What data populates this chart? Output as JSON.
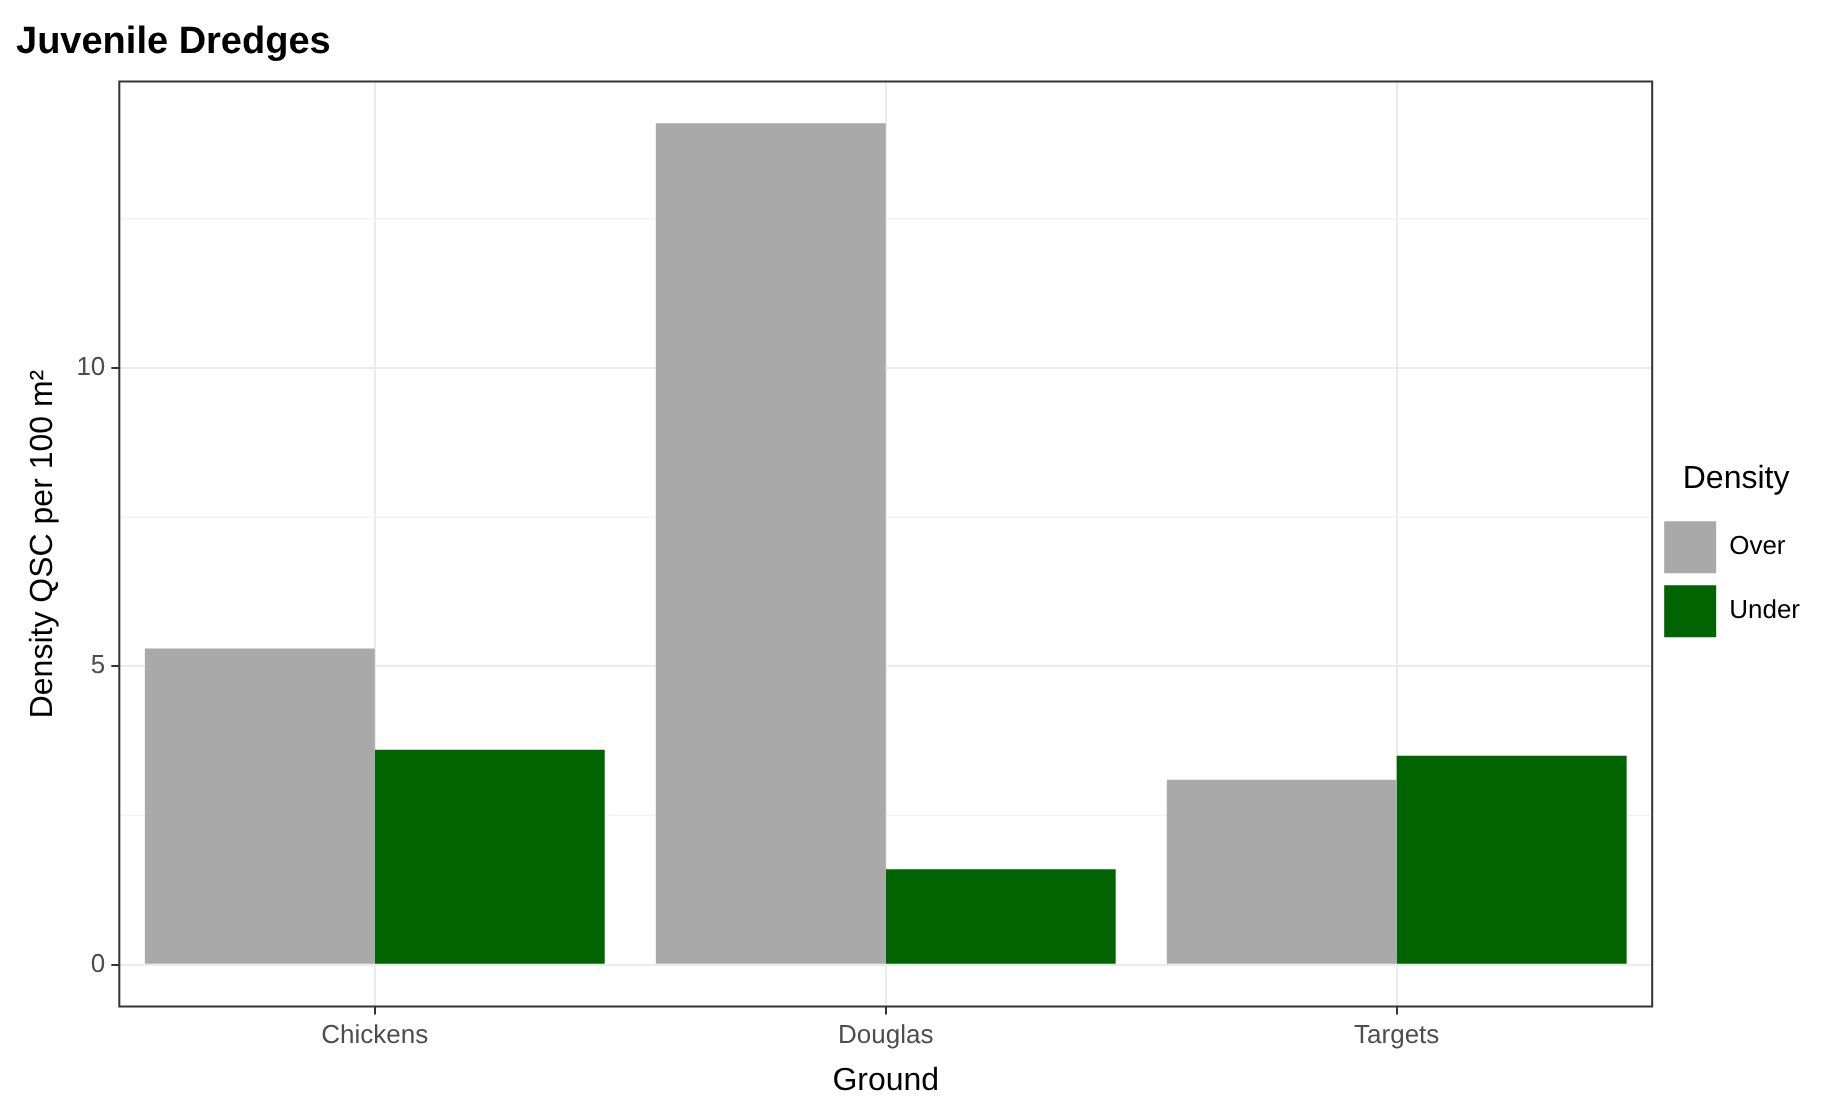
{
  "chart_data": {
    "type": "bar",
    "title": "Juvenile Dredges",
    "xlabel": "Ground",
    "ylabel": "Density QSC per 100 m²",
    "legend_title": "Density",
    "categories": [
      "Chickens",
      "Douglas",
      "Targets"
    ],
    "series": [
      {
        "name": "Over",
        "color": "#a9a9a9",
        "values": [
          5.3,
          14.1,
          3.1
        ]
      },
      {
        "name": "Under",
        "color": "#006400",
        "values": [
          3.6,
          1.6,
          3.5
        ]
      }
    ],
    "ylim": [
      -0.7,
      14.8
    ],
    "yticks": [
      0,
      5,
      10
    ],
    "grid": true,
    "legend": "right"
  }
}
